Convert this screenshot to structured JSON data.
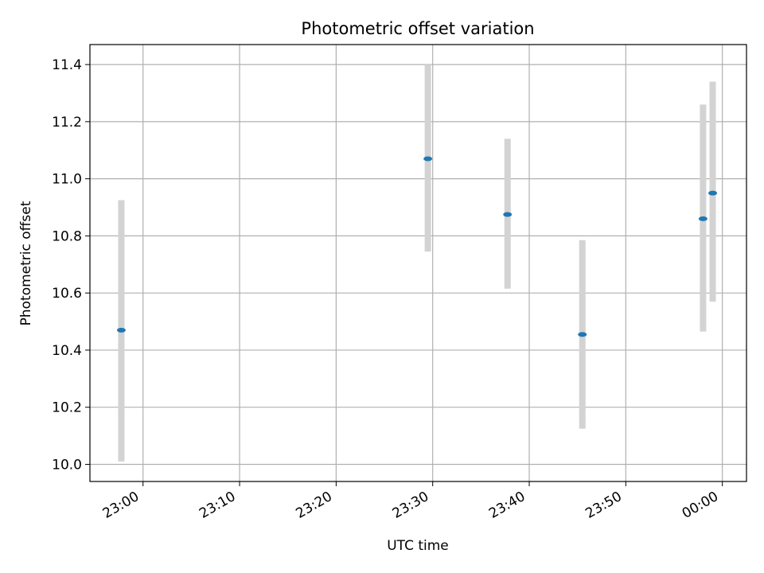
{
  "chart_data": {
    "type": "scatter",
    "title": "Photometric offset variation",
    "xlabel": "UTC time",
    "ylabel": "Photometric offset",
    "x_axis": {
      "kind": "time",
      "start": "22:54:30",
      "end": "00:02:30"
    },
    "ylim": [
      9.94,
      11.47
    ],
    "x_ticks": [
      "23:00",
      "23:10",
      "23:20",
      "23:30",
      "23:40",
      "23:50",
      "00:00"
    ],
    "y_ticks": [
      "10.0",
      "10.2",
      "10.4",
      "10.6",
      "10.8",
      "11.0",
      "11.2",
      "11.4"
    ],
    "grid": true,
    "marker_color": "#1f77b4",
    "errorbar_color": "#d3d3d3",
    "points": [
      {
        "time": "22:57:45",
        "y": 10.47,
        "ylow": 10.01,
        "yhigh": 10.925
      },
      {
        "time": "23:29:30",
        "y": 11.07,
        "ylow": 10.745,
        "yhigh": 11.4
      },
      {
        "time": "23:37:45",
        "y": 10.875,
        "ylow": 10.615,
        "yhigh": 11.14
      },
      {
        "time": "23:45:30",
        "y": 10.455,
        "ylow": 10.125,
        "yhigh": 10.785
      },
      {
        "time": "23:58:00",
        "y": 10.86,
        "ylow": 10.465,
        "yhigh": 11.26
      },
      {
        "time": "23:59:00",
        "y": 10.95,
        "ylow": 10.57,
        "yhigh": 11.34
      }
    ]
  }
}
